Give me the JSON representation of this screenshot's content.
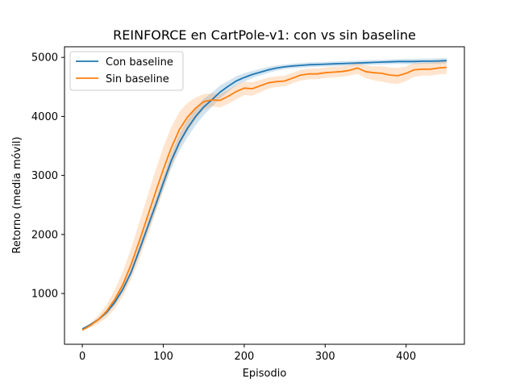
{
  "chart_data": {
    "type": "line",
    "title": "REINFORCE en CartPole-v1: con vs sin baseline",
    "xlabel": "Episodio",
    "ylabel": "Retorno (media móvil)",
    "xlim": [
      -22,
      472
    ],
    "ylim": [
      140,
      5180
    ],
    "xticks": [
      0,
      100,
      200,
      300,
      400
    ],
    "yticks": [
      1000,
      2000,
      3000,
      4000,
      5000
    ],
    "grid": false,
    "legend_position": "top-left",
    "series": [
      {
        "name": "Con baseline",
        "color": "#1f77b4",
        "x": [
          0,
          10,
          20,
          30,
          40,
          50,
          60,
          70,
          80,
          90,
          100,
          110,
          120,
          130,
          140,
          150,
          160,
          170,
          180,
          190,
          200,
          210,
          220,
          230,
          240,
          250,
          260,
          270,
          280,
          290,
          300,
          310,
          320,
          330,
          340,
          350,
          360,
          370,
          380,
          390,
          400,
          410,
          420,
          430,
          440,
          450
        ],
        "y": [
          400,
          470,
          560,
          680,
          850,
          1070,
          1350,
          1720,
          2100,
          2480,
          2870,
          3250,
          3560,
          3800,
          4000,
          4160,
          4280,
          4410,
          4510,
          4600,
          4660,
          4710,
          4750,
          4790,
          4820,
          4840,
          4855,
          4865,
          4875,
          4880,
          4885,
          4890,
          4895,
          4900,
          4905,
          4910,
          4915,
          4920,
          4925,
          4930,
          4930,
          4930,
          4935,
          4935,
          4940,
          4945
        ],
        "lower": [
          385,
          450,
          535,
          645,
          805,
          1015,
          1285,
          1640,
          2010,
          2380,
          2760,
          3120,
          3420,
          3650,
          3850,
          4020,
          4160,
          4300,
          4420,
          4520,
          4590,
          4650,
          4695,
          4740,
          4775,
          4800,
          4815,
          4825,
          4835,
          4840,
          4845,
          4850,
          4855,
          4860,
          4865,
          4870,
          4875,
          4880,
          4885,
          4890,
          4885,
          4885,
          4890,
          4890,
          4895,
          4900
        ],
        "upper": [
          415,
          490,
          585,
          715,
          895,
          1125,
          1415,
          1800,
          2190,
          2580,
          2980,
          3380,
          3700,
          3950,
          4150,
          4300,
          4400,
          4520,
          4600,
          4680,
          4730,
          4770,
          4805,
          4840,
          4865,
          4880,
          4895,
          4905,
          4915,
          4920,
          4925,
          4930,
          4935,
          4940,
          4945,
          4950,
          4955,
          4960,
          4965,
          4970,
          4975,
          4975,
          4980,
          4980,
          4985,
          4990
        ]
      },
      {
        "name": "Sin baseline",
        "color": "#ff7f0e",
        "x": [
          0,
          10,
          20,
          30,
          40,
          50,
          60,
          70,
          80,
          90,
          100,
          110,
          120,
          130,
          140,
          150,
          160,
          170,
          180,
          190,
          200,
          210,
          220,
          230,
          240,
          250,
          260,
          270,
          280,
          290,
          300,
          310,
          320,
          330,
          340,
          350,
          360,
          370,
          380,
          390,
          400,
          410,
          420,
          430,
          440,
          450
        ],
        "y": [
          380,
          460,
          560,
          700,
          900,
          1150,
          1480,
          1870,
          2280,
          2700,
          3100,
          3470,
          3780,
          3990,
          4140,
          4250,
          4280,
          4270,
          4340,
          4420,
          4480,
          4470,
          4520,
          4570,
          4590,
          4600,
          4650,
          4700,
          4720,
          4720,
          4740,
          4750,
          4760,
          4780,
          4820,
          4760,
          4740,
          4730,
          4700,
          4690,
          4730,
          4790,
          4800,
          4800,
          4820,
          4830
        ],
        "lower": [
          365,
          420,
          490,
          590,
          740,
          950,
          1230,
          1570,
          1950,
          2350,
          2750,
          3150,
          3500,
          3750,
          3950,
          4110,
          4170,
          4150,
          4210,
          4290,
          4360,
          4350,
          4410,
          4470,
          4500,
          4510,
          4560,
          4610,
          4630,
          4630,
          4650,
          4660,
          4670,
          4690,
          4720,
          4650,
          4610,
          4590,
          4560,
          4550,
          4600,
          4670,
          4690,
          4690,
          4710,
          4720
        ],
        "upper": [
          395,
          500,
          630,
          810,
          1060,
          1370,
          1750,
          2190,
          2630,
          3070,
          3480,
          3820,
          4080,
          4230,
          4320,
          4380,
          4390,
          4380,
          4450,
          4530,
          4590,
          4580,
          4620,
          4660,
          4680,
          4690,
          4740,
          4790,
          4810,
          4810,
          4830,
          4840,
          4850,
          4870,
          4910,
          4860,
          4850,
          4850,
          4830,
          4820,
          4850,
          4900,
          4910,
          4910,
          4930,
          4940
        ]
      }
    ]
  }
}
